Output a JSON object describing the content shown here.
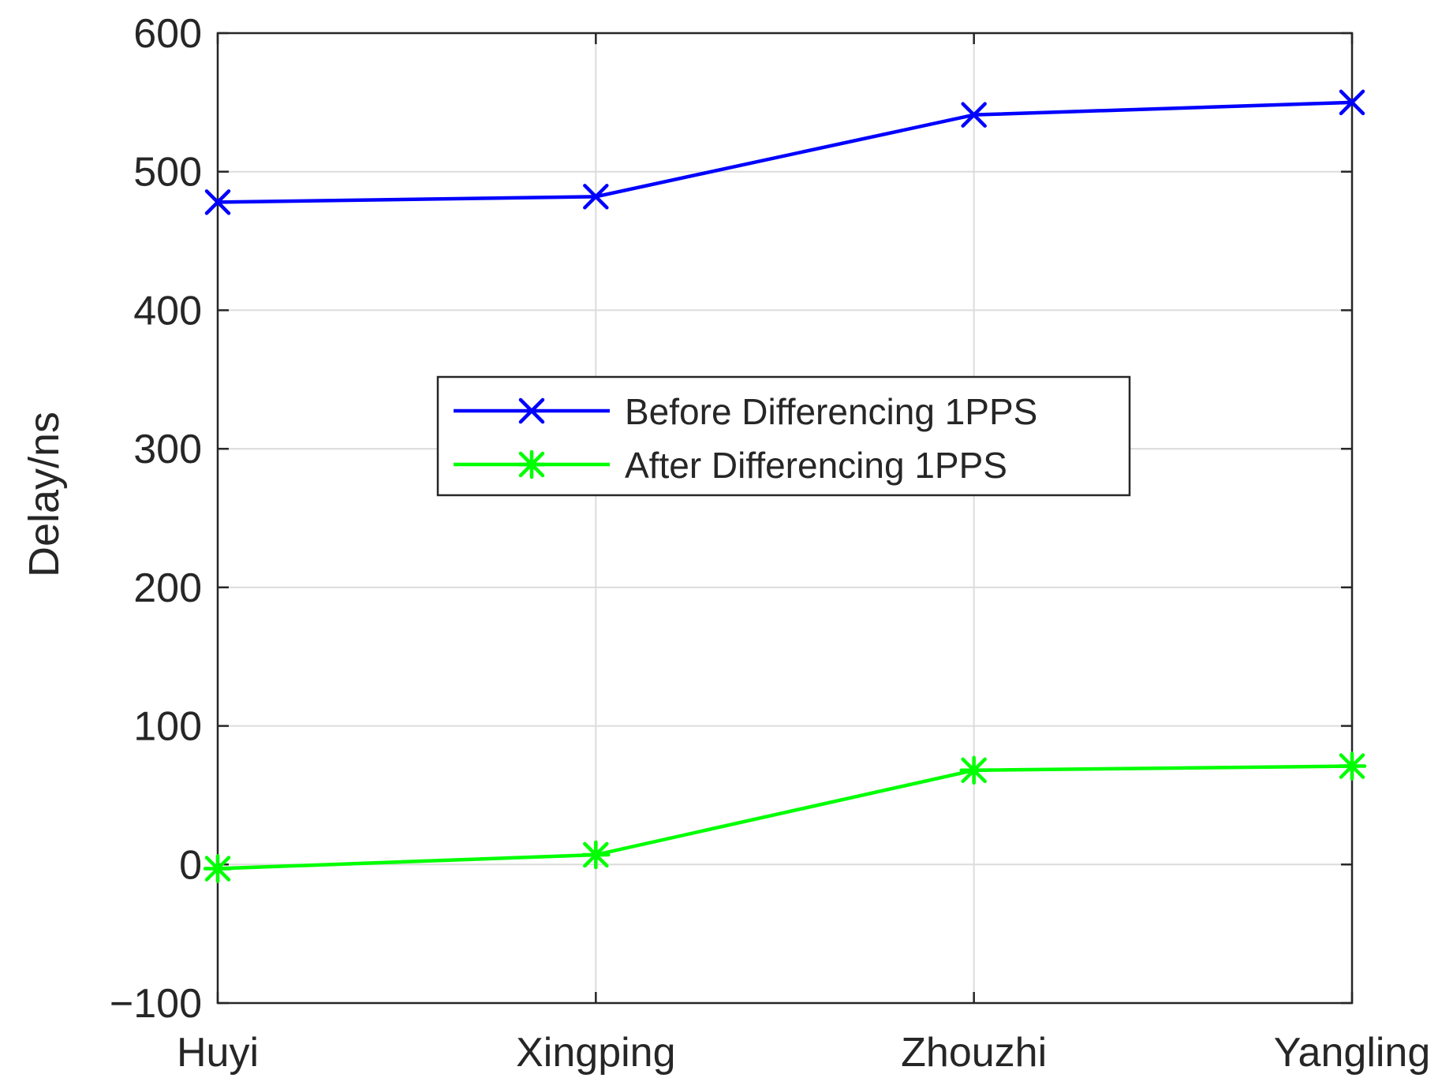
{
  "chart_data": {
    "type": "line",
    "title": "",
    "xlabel": "",
    "ylabel": "Delay/ns",
    "categories": [
      "Huyi",
      "Xingping",
      "Zhouzhi",
      "Yangling"
    ],
    "ylim": [
      -100,
      600
    ],
    "yticks": [
      -100,
      0,
      100,
      200,
      300,
      400,
      500,
      600
    ],
    "ytick_labels": [
      "−100",
      "0",
      "100",
      "200",
      "300",
      "400",
      "500",
      "600"
    ],
    "grid": true,
    "legend_position": "center",
    "series": [
      {
        "name": "Before Differencing 1PPS",
        "values": [
          478,
          482,
          541,
          550
        ],
        "color": "#0000ff",
        "marker": "x"
      },
      {
        "name": "After Differencing 1PPS",
        "values": [
          -3,
          7,
          68,
          71
        ],
        "color": "#00ff00",
        "marker": "asterisk"
      }
    ]
  }
}
